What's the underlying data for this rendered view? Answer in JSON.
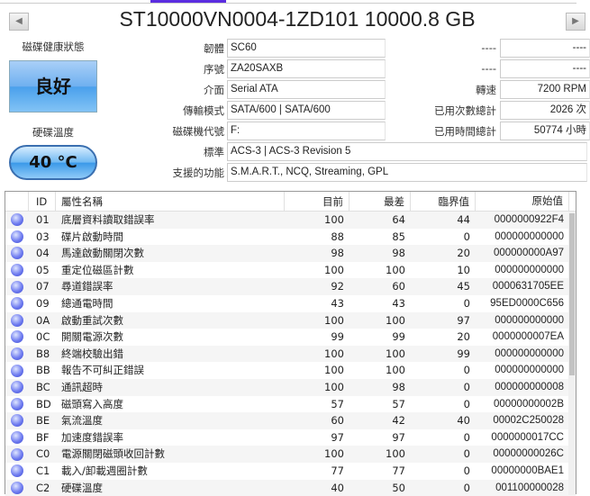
{
  "title": "ST10000VN0004-1ZD101 10000.8 GB",
  "nav": {
    "prev_icon": "◀",
    "next_icon": "▶"
  },
  "health": {
    "label": "磁碟健康狀態",
    "status": "良好",
    "color": "#4aa0ec"
  },
  "temperature": {
    "label": "硬碟溫度",
    "value": "40 °C"
  },
  "fields": {
    "firmware": {
      "label": "韌體",
      "value": "SC60"
    },
    "serial": {
      "label": "序號",
      "value": "ZA20SAXB"
    },
    "interface": {
      "label": "介面",
      "value": "Serial ATA"
    },
    "transfer_mode": {
      "label": "傳輸模式",
      "value": "SATA/600 | SATA/600"
    },
    "drive_letter": {
      "label": "磁碟機代號",
      "value": "F:"
    },
    "standard": {
      "label": "標準",
      "value": "ACS-3 | ACS-3 Revision 5"
    },
    "features": {
      "label": "支援的功能",
      "value": "S.M.A.R.T., NCQ, Streaming, GPL"
    },
    "blank1": {
      "label": "----",
      "value": "----"
    },
    "blank2": {
      "label": "----",
      "value": "----"
    },
    "rotation": {
      "label": "轉速",
      "value": "7200 RPM"
    },
    "power_on_count": {
      "label": "已用次數總計",
      "value": "2026 次"
    },
    "power_on_hours": {
      "label": "已用時間總計",
      "value": "50774 小時"
    }
  },
  "table": {
    "headers": [
      "",
      "ID",
      "屬性名稱",
      "目前",
      "最差",
      "臨界值",
      "原始值"
    ],
    "rows": [
      [
        "01",
        "底層資料讀取錯誤率",
        "100",
        "64",
        "44",
        "0000000922F4"
      ],
      [
        "03",
        "碟片啟動時間",
        "88",
        "85",
        "0",
        "000000000000"
      ],
      [
        "04",
        "馬達啟動關閉次數",
        "98",
        "98",
        "20",
        "000000000A97"
      ],
      [
        "05",
        "重定位磁區計數",
        "100",
        "100",
        "10",
        "000000000000"
      ],
      [
        "07",
        "尋道錯誤率",
        "92",
        "60",
        "45",
        "0000631705EE"
      ],
      [
        "09",
        "總通電時間",
        "43",
        "43",
        "0",
        "95ED0000C656"
      ],
      [
        "0A",
        "啟動重試次數",
        "100",
        "100",
        "97",
        "000000000000"
      ],
      [
        "0C",
        "開關電源次數",
        "99",
        "99",
        "20",
        "0000000007EA"
      ],
      [
        "B8",
        "終端校驗出錯",
        "100",
        "100",
        "99",
        "000000000000"
      ],
      [
        "BB",
        "報告不可糾正錯誤",
        "100",
        "100",
        "0",
        "000000000000"
      ],
      [
        "BC",
        "通訊超時",
        "100",
        "98",
        "0",
        "000000000008"
      ],
      [
        "BD",
        "磁頭寫入高度",
        "57",
        "57",
        "0",
        "00000000002B"
      ],
      [
        "BE",
        "氣流溫度",
        "60",
        "42",
        "40",
        "00002C250028"
      ],
      [
        "BF",
        "加速度錯誤率",
        "97",
        "97",
        "0",
        "0000000017CC"
      ],
      [
        "C0",
        "電源關閉磁頭收回計數",
        "100",
        "100",
        "0",
        "00000000026C"
      ],
      [
        "C1",
        "載入/卸載週圈計數",
        "77",
        "77",
        "0",
        "00000000BAE1"
      ],
      [
        "C2",
        "硬碟溫度",
        "40",
        "50",
        "0",
        "001100000028"
      ]
    ]
  }
}
